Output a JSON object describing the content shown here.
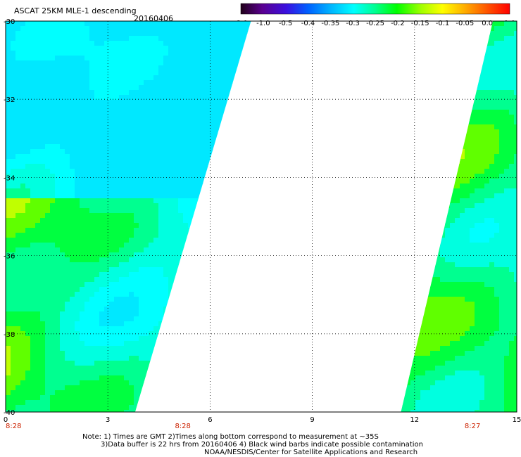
{
  "header": {
    "title": "ASCAT 25KM MLE-1 descending",
    "date": "20160406"
  },
  "colorbar": {
    "labels": [
      "-3.0",
      "-1.0",
      "-0.5",
      "-0.4",
      "-0.35",
      "-0.3",
      "-0.25",
      "-0.2",
      "-0.15",
      "-0.1",
      "-0.05",
      "0.0",
      "1.0"
    ],
    "colors": [
      "#200018",
      "#5a0090",
      "#3a10e0",
      "#0060ff",
      "#00b0ff",
      "#00ffff",
      "#00ff90",
      "#00ff00",
      "#a0ff00",
      "#ffff00",
      "#ffb000",
      "#ff5000",
      "#ff0000"
    ]
  },
  "chart_data": {
    "type": "heatmap",
    "x_ticks": [
      "0",
      "3",
      "6",
      "9",
      "12",
      "15"
    ],
    "y_ticks": [
      "-30",
      "-32",
      "-34",
      "-36",
      "-38",
      "-40"
    ],
    "xlim": [
      0,
      15
    ],
    "ylim": [
      -40,
      -30
    ],
    "grid": true,
    "time_labels": [
      {
        "x": 0,
        "text": "8:28"
      },
      {
        "x": 5.2,
        "text": "8:28"
      },
      {
        "x": 13.7,
        "text": "8:27"
      }
    ],
    "swaths": [
      {
        "name": "west",
        "lon_left": 0,
        "lon_right_top": 7.2,
        "lon_right_bottom": 3.8
      },
      {
        "name": "east",
        "lon_left_top": 14.3,
        "lon_left_bottom": 11.6,
        "lon_right": 15
      }
    ]
  },
  "footer": {
    "note1": "Note: 1) Times are GMT 2)Times along bottom correspond to measurement at ~35S",
    "note2": "3)Data buffer is 22 hrs from 20160406 4) Black wind barbs indicate possible contamination",
    "note3": "NOAA/NESDIS/Center for Satellite Applications and Research"
  }
}
